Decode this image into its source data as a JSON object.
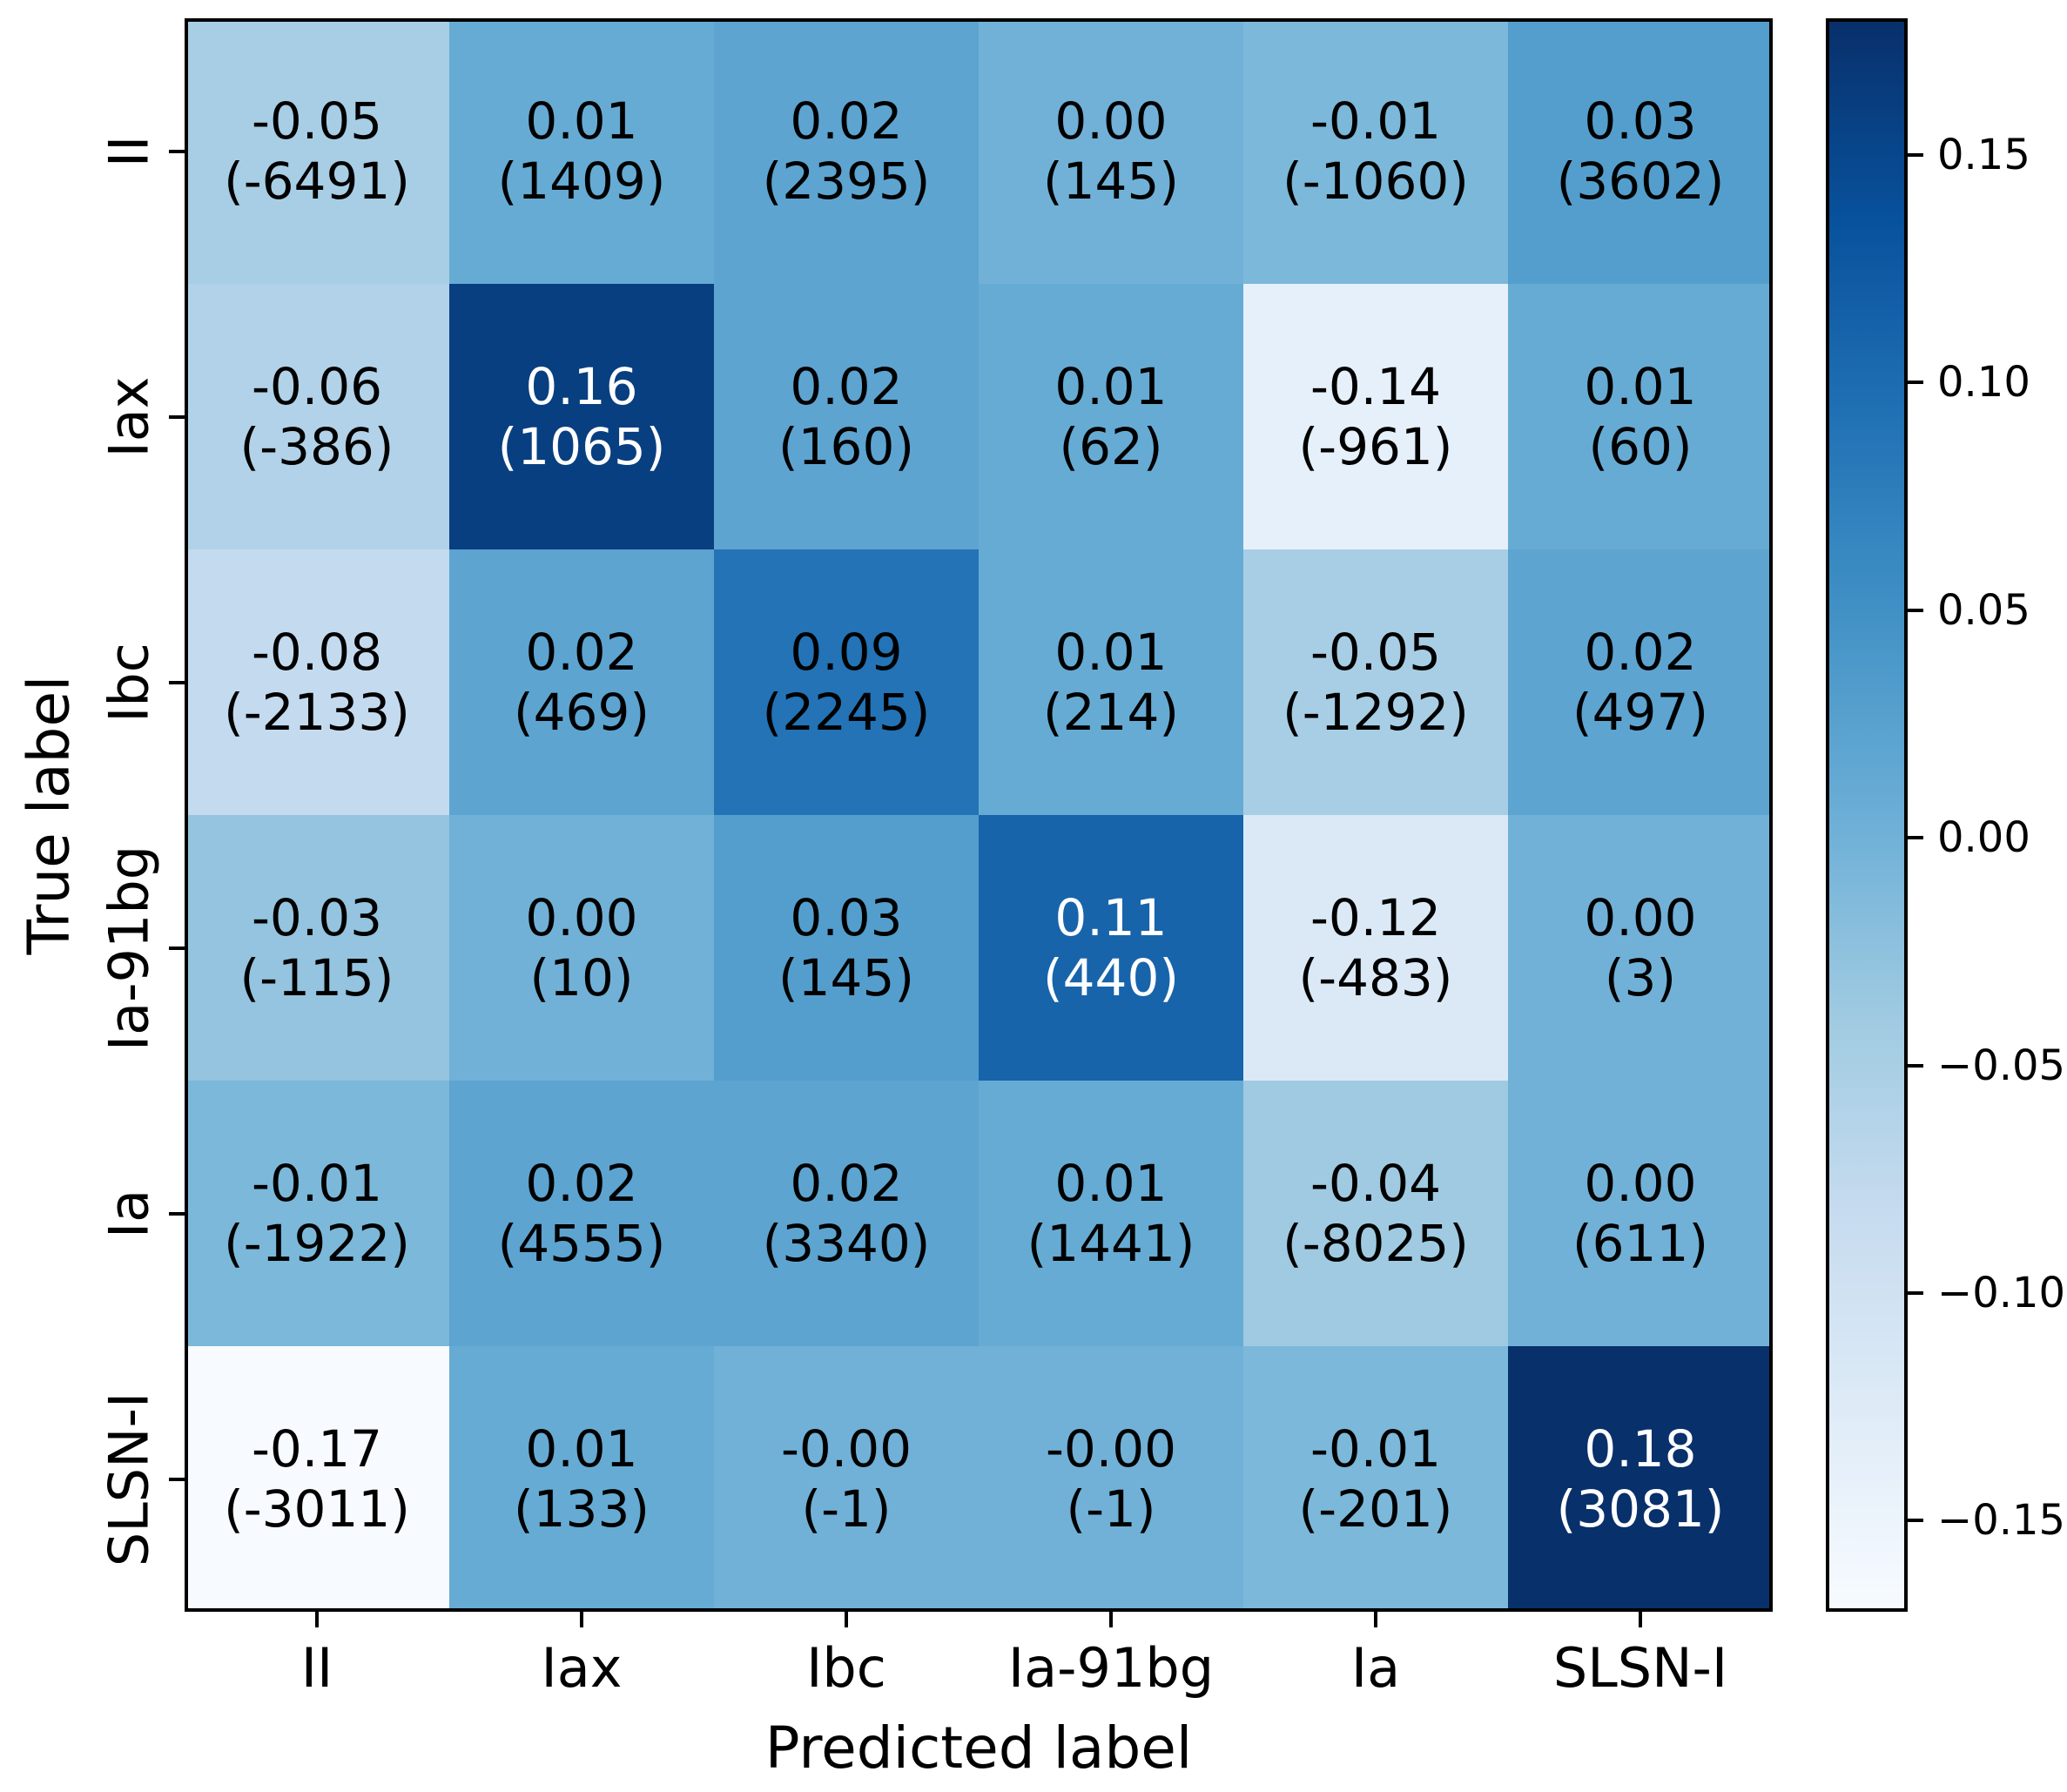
{
  "chart_data": {
    "type": "heatmap",
    "xlabel": "Predicted label",
    "ylabel": "True label",
    "x_categories": [
      "II",
      "Iax",
      "Ibc",
      "Ia-91bg",
      "Ia",
      "SLSN-I"
    ],
    "y_categories": [
      "II",
      "Iax",
      "Ibc",
      "Ia-91bg",
      "Ia",
      "SLSN-I"
    ],
    "colormap": "Blues",
    "vmin": -0.17,
    "vmax": 0.18,
    "grid": false,
    "legend_position": "right-colorbar",
    "cells": [
      [
        {
          "v": -0.05,
          "label": "-0.05",
          "count": "(-6491)"
        },
        {
          "v": 0.01,
          "label": "0.01",
          "count": "(1409)"
        },
        {
          "v": 0.02,
          "label": "0.02",
          "count": "(2395)"
        },
        {
          "v": 0.0,
          "label": "0.00",
          "count": "(145)"
        },
        {
          "v": -0.01,
          "label": "-0.01",
          "count": "(-1060)"
        },
        {
          "v": 0.03,
          "label": "0.03",
          "count": "(3602)"
        }
      ],
      [
        {
          "v": -0.06,
          "label": "-0.06",
          "count": "(-386)"
        },
        {
          "v": 0.16,
          "label": "0.16",
          "count": "(1065)"
        },
        {
          "v": 0.02,
          "label": "0.02",
          "count": "(160)"
        },
        {
          "v": 0.01,
          "label": "0.01",
          "count": "(62)"
        },
        {
          "v": -0.14,
          "label": "-0.14",
          "count": "(-961)"
        },
        {
          "v": 0.01,
          "label": "0.01",
          "count": "(60)"
        }
      ],
      [
        {
          "v": -0.08,
          "label": "-0.08",
          "count": "(-2133)"
        },
        {
          "v": 0.02,
          "label": "0.02",
          "count": "(469)"
        },
        {
          "v": 0.09,
          "label": "0.09",
          "count": "(2245)"
        },
        {
          "v": 0.01,
          "label": "0.01",
          "count": "(214)"
        },
        {
          "v": -0.05,
          "label": "-0.05",
          "count": "(-1292)"
        },
        {
          "v": 0.02,
          "label": "0.02",
          "count": "(497)"
        }
      ],
      [
        {
          "v": -0.03,
          "label": "-0.03",
          "count": "(-115)"
        },
        {
          "v": 0.0,
          "label": "0.00",
          "count": "(10)"
        },
        {
          "v": 0.03,
          "label": "0.03",
          "count": "(145)"
        },
        {
          "v": 0.11,
          "label": "0.11",
          "count": "(440)"
        },
        {
          "v": -0.12,
          "label": "-0.12",
          "count": "(-483)"
        },
        {
          "v": 0.0,
          "label": "0.00",
          "count": "(3)"
        }
      ],
      [
        {
          "v": -0.01,
          "label": "-0.01",
          "count": "(-1922)"
        },
        {
          "v": 0.02,
          "label": "0.02",
          "count": "(4555)"
        },
        {
          "v": 0.02,
          "label": "0.02",
          "count": "(3340)"
        },
        {
          "v": 0.01,
          "label": "0.01",
          "count": "(1441)"
        },
        {
          "v": -0.04,
          "label": "-0.04",
          "count": "(-8025)"
        },
        {
          "v": 0.0,
          "label": "0.00",
          "count": "(611)"
        }
      ],
      [
        {
          "v": -0.17,
          "label": "-0.17",
          "count": "(-3011)"
        },
        {
          "v": 0.01,
          "label": "0.01",
          "count": "(133)"
        },
        {
          "v": 0.0,
          "label": "-0.00",
          "count": "(-1)"
        },
        {
          "v": 0.0,
          "label": "-0.00",
          "count": "(-1)"
        },
        {
          "v": -0.01,
          "label": "-0.01",
          "count": "(-201)"
        },
        {
          "v": 0.18,
          "label": "0.18",
          "count": "(3081)"
        }
      ]
    ],
    "colorbar_ticks": [
      {
        "v": 0.15,
        "label": "0.15"
      },
      {
        "v": 0.1,
        "label": "0.10"
      },
      {
        "v": 0.05,
        "label": "0.05"
      },
      {
        "v": 0.0,
        "label": "0.00"
      },
      {
        "v": -0.05,
        "label": "−0.05"
      },
      {
        "v": -0.1,
        "label": "−0.10"
      },
      {
        "v": -0.15,
        "label": "−0.15"
      }
    ]
  },
  "colors": {
    "frame": "#000000",
    "text_dark": "#000000",
    "text_light": "#ffffff",
    "background": "#ffffff"
  }
}
